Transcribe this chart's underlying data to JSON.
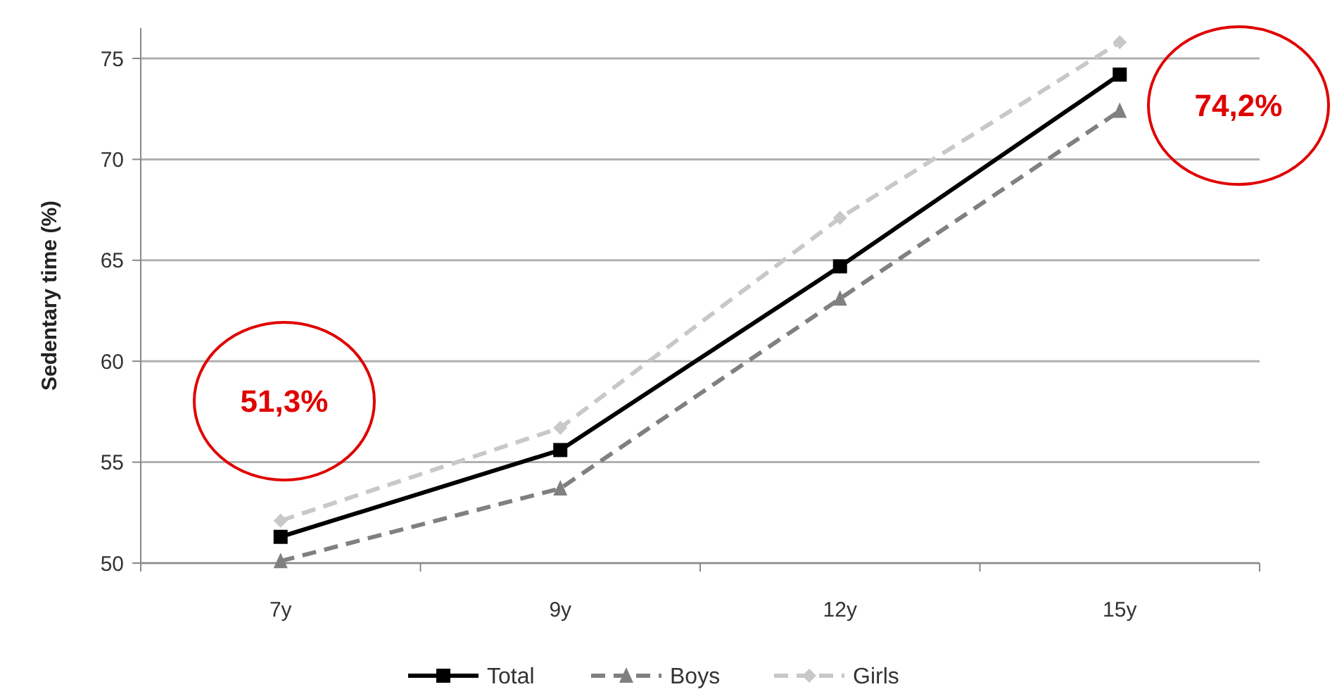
{
  "chart_data": {
    "type": "line",
    "ylabel": "Sedentary time (%)",
    "categories": [
      "7y",
      "9y",
      "12y",
      "15y"
    ],
    "series": [
      {
        "name": "Total",
        "color": "#000000",
        "values": [
          51.3,
          55.6,
          64.7,
          74.2
        ],
        "marker": "square",
        "line_style": "solid"
      },
      {
        "name": "Boys",
        "color": "#808080",
        "values": [
          50.1,
          53.7,
          63.1,
          72.4
        ],
        "marker": "triangle",
        "line_style": "dashed"
      },
      {
        "name": "Girls",
        "color": "#c8c8c8",
        "values": [
          52.1,
          56.7,
          67.1,
          75.8
        ],
        "marker": "diamond",
        "line_style": "dashed"
      }
    ],
    "ylim": [
      50,
      76.5
    ],
    "yticks": [
      50,
      55,
      60,
      65,
      70,
      75
    ],
    "grid": "y",
    "legend": "bottom",
    "annotations": [
      "51,3%",
      "74,2%"
    ]
  }
}
